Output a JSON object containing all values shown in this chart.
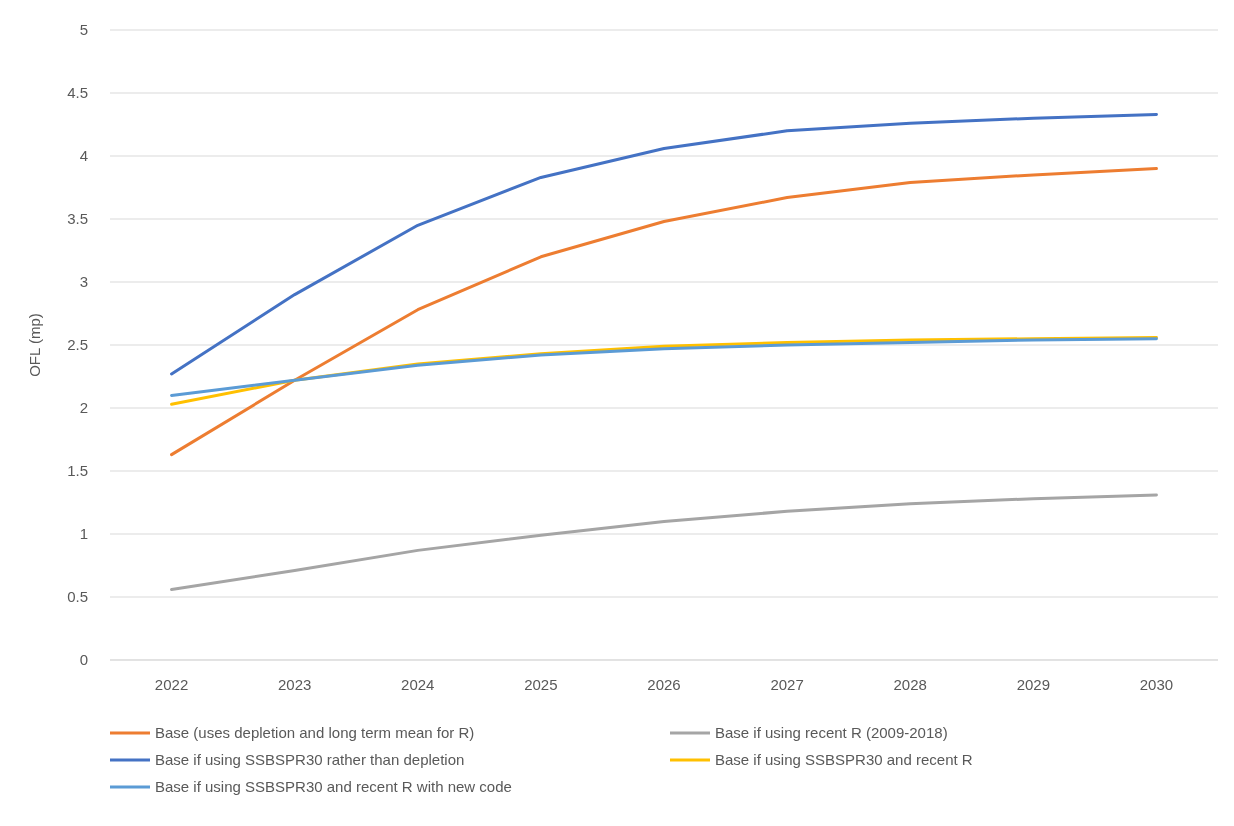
{
  "chart_data": {
    "type": "line",
    "ylabel": "OFL (mp)",
    "categories": [
      "2022",
      "2023",
      "2024",
      "2025",
      "2026",
      "2027",
      "2028",
      "2029",
      "2030"
    ],
    "series": [
      {
        "name": "Base (uses depletion and long term mean for R)",
        "color": "#ed7d31",
        "values": [
          1.63,
          2.22,
          2.78,
          3.2,
          3.48,
          3.67,
          3.79,
          3.85,
          3.9
        ]
      },
      {
        "name": "Base if using recent R (2009-2018)",
        "color": "#a5a5a5",
        "values": [
          0.56,
          0.71,
          0.87,
          0.99,
          1.1,
          1.18,
          1.24,
          1.28,
          1.31
        ]
      },
      {
        "name": "Base if using SSBSPR30 rather than depletion",
        "color": "#4472c4",
        "values": [
          2.27,
          2.9,
          3.45,
          3.83,
          4.06,
          4.2,
          4.26,
          4.3,
          4.33
        ]
      },
      {
        "name": "Base if using SSBSPR30 and recent R",
        "color": "#ffc000",
        "values": [
          2.03,
          2.22,
          2.35,
          2.43,
          2.49,
          2.52,
          2.54,
          2.55,
          2.56
        ]
      },
      {
        "name": "Base if using SSBSPR30 and recent R with new code",
        "color": "#5b9bd5",
        "values": [
          2.1,
          2.22,
          2.34,
          2.42,
          2.47,
          2.5,
          2.52,
          2.54,
          2.55
        ]
      }
    ],
    "ylim": [
      0,
      5
    ],
    "yticks": [
      0,
      0.5,
      1,
      1.5,
      2,
      2.5,
      3,
      3.5,
      4,
      4.5,
      5
    ],
    "grid": "y",
    "legend": "bottom",
    "marker": "none",
    "line_style": "solid"
  }
}
